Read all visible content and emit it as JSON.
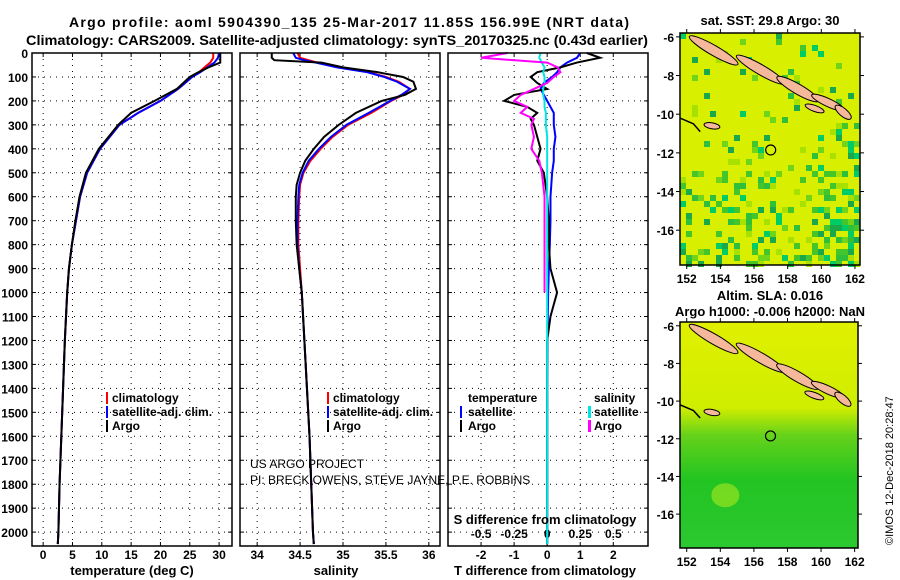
{
  "header": {
    "title_line1": "Argo profile: aoml 5904390_135 25-Mar-2017 11.85S 156.99E (NRT data)",
    "title_line2": "Climatology: CARS2009. Satellite-adjusted climatology: synTS_20170325.nc (0.43d earlier)"
  },
  "credits": {
    "line1": "US ARGO PROJECT",
    "line2": "PI: BRECK OWENS, STEVE JAYNE, P.E. ROBBINS",
    "imos": "©IMOS 12-Dec-2018 20:28:47"
  },
  "colors": {
    "climatology": "#ff0000",
    "satellite": "#0000ff",
    "argo": "#000000",
    "sal_satellite": "#00e5e5",
    "sal_argo": "#ff00ff",
    "map_yellow": "#d8f000",
    "map_green": "#22cc22",
    "land": "#f5b89a"
  },
  "chart_data": [
    {
      "type": "line",
      "name": "temperature",
      "xlabel": "temperature (deg C)",
      "xticks": [
        0,
        5,
        10,
        15,
        20,
        25,
        30
      ],
      "xlim": [
        -1.9,
        32.2
      ],
      "ylim": [
        0,
        2058
      ],
      "yticks": [
        0,
        100,
        200,
        300,
        400,
        500,
        600,
        700,
        800,
        900,
        1000,
        1100,
        1200,
        1300,
        1400,
        1500,
        1600,
        1700,
        1800,
        1900,
        2000
      ],
      "legend": [
        "climatology",
        "satellite-adj. clim.",
        "Argo"
      ],
      "depth": [
        0,
        20,
        40,
        60,
        80,
        100,
        150,
        200,
        250,
        300,
        400,
        500,
        600,
        700,
        800,
        900,
        1000,
        1100,
        1200,
        1400,
        1600,
        1800,
        2000,
        2050
      ],
      "series": [
        {
          "name": "climatology",
          "values": [
            29.0,
            29.0,
            28.5,
            27.5,
            26.6,
            25.4,
            23.0,
            20.0,
            16.2,
            13.0,
            9.7,
            7.5,
            6.3,
            5.6,
            4.9,
            4.4,
            4.1,
            3.9,
            3.7,
            3.4,
            3.1,
            2.8,
            2.6,
            2.5
          ]
        },
        {
          "name": "satellite-adj. clim.",
          "values": [
            30.0,
            29.8,
            29.2,
            28.0,
            26.8,
            25.4,
            23.0,
            20.0,
            16.2,
            13.0,
            9.7,
            7.5,
            6.3,
            5.6,
            4.9,
            4.4,
            4.1,
            3.9,
            3.7,
            3.4,
            3.1,
            2.8,
            2.6,
            2.5
          ]
        },
        {
          "name": "Argo",
          "values": [
            30.2,
            30.2,
            30.2,
            28.2,
            26.5,
            25.0,
            22.8,
            19.0,
            15.0,
            12.8,
            9.5,
            7.3,
            6.2,
            5.5,
            4.9,
            4.4,
            4.1,
            3.9,
            3.7,
            3.4,
            3.1,
            2.8,
            2.6,
            2.5
          ]
        }
      ]
    },
    {
      "type": "line",
      "name": "salinity",
      "xlabel": "salinity",
      "xticks": [
        34,
        34.5,
        35,
        35.5,
        36
      ],
      "xlim": [
        33.8,
        36.13
      ],
      "ylim": [
        0,
        2058
      ],
      "legend": [
        "climatology",
        "satellite-adj. clim.",
        "Argo"
      ],
      "depth": [
        0,
        20,
        30,
        40,
        60,
        80,
        100,
        120,
        150,
        175,
        200,
        250,
        300,
        350,
        400,
        450,
        500,
        550,
        600,
        700,
        800,
        900,
        1000,
        1200,
        1400,
        1600,
        1800,
        2000,
        2050
      ],
      "series": [
        {
          "name": "climatology",
          "values": [
            34.47,
            34.5,
            34.6,
            34.7,
            34.95,
            35.3,
            35.5,
            35.65,
            35.78,
            35.7,
            35.56,
            35.33,
            35.06,
            34.88,
            34.74,
            34.62,
            34.54,
            34.5,
            34.49,
            34.48,
            34.48,
            34.5,
            34.52,
            34.55,
            34.58,
            34.61,
            34.63,
            34.65,
            34.66
          ]
        },
        {
          "name": "satellite-adj. clim.",
          "values": [
            34.42,
            34.45,
            34.55,
            34.68,
            34.93,
            35.28,
            35.48,
            35.63,
            35.78,
            35.68,
            35.55,
            35.3,
            35.04,
            34.86,
            34.72,
            34.6,
            34.53,
            34.49,
            34.48,
            34.47,
            34.47,
            34.49,
            34.52,
            34.55,
            34.58,
            34.61,
            34.63,
            34.65,
            34.66
          ]
        },
        {
          "name": "Argo",
          "values": [
            34.17,
            34.17,
            34.2,
            34.75,
            35.0,
            35.4,
            35.7,
            35.82,
            35.85,
            35.72,
            35.45,
            35.15,
            34.95,
            34.78,
            34.66,
            34.56,
            34.5,
            34.46,
            34.45,
            34.45,
            34.46,
            34.49,
            34.52,
            34.55,
            34.58,
            34.61,
            34.63,
            34.65,
            34.66
          ]
        }
      ]
    },
    {
      "type": "line",
      "name": "differences",
      "xlabel": "T difference from climatology",
      "xlabel2": "S difference from climatology",
      "xticks": [
        -2,
        -1,
        0,
        1,
        2
      ],
      "xticks2": [
        -0.5,
        -0.25,
        0,
        0.25,
        0.5
      ],
      "xtick2_labels": [
        "-0.5",
        "-0.25",
        "0",
        "0.25",
        "0.5"
      ],
      "xlim": [
        -3.0,
        3.05
      ],
      "ylim": [
        0,
        2058
      ],
      "legend_titles": [
        "temperature",
        "salinity"
      ],
      "legend": [
        "satellite",
        "Argo",
        "satellite",
        "Argo"
      ],
      "depth": [
        0,
        20,
        40,
        60,
        80,
        100,
        125,
        150,
        175,
        200,
        225,
        250,
        275,
        300,
        350,
        400,
        450,
        500,
        600,
        700,
        800,
        900,
        1000,
        1100,
        1200,
        1400,
        1600,
        1800,
        2000,
        2050
      ],
      "series": [
        {
          "name": "temperature satellite",
          "values": [
            1.0,
            0.9,
            0.6,
            0.4,
            0.3,
            0.15,
            -0.1,
            -0.2,
            -0.1,
            0.0,
            0.1,
            0.2,
            0.2,
            0.2,
            0.25,
            0.2,
            0.2,
            0.15,
            0.1,
            0.1,
            0.08,
            0.05,
            0.03,
            0.02,
            0.01,
            0.0,
            0.0,
            0.0,
            0.0,
            0.0
          ]
        },
        {
          "name": "temperature Argo",
          "values": [
            1.2,
            1.6,
            0.9,
            0.4,
            -0.3,
            -0.5,
            -0.3,
            0.0,
            -1.0,
            -1.3,
            -0.6,
            -0.3,
            -0.5,
            -0.4,
            -0.3,
            -0.2,
            -0.3,
            -0.1,
            0.0,
            0.05,
            0.05,
            0.1,
            0.3,
            0.1,
            0.0,
            0.0,
            0.0,
            0.0,
            0.0,
            0.0
          ]
        },
        {
          "name": "salinity satellite",
          "values": [
            -0.05,
            -0.06,
            -0.04,
            -0.02,
            -0.03,
            -0.02,
            -0.02,
            -0.03,
            -0.03,
            -0.02,
            -0.02,
            -0.01,
            -0.01,
            -0.01,
            0.0,
            0.0,
            0.0,
            0.0,
            0.0,
            0.0,
            0.0,
            0.0,
            0.0,
            0.0,
            0.0,
            0.0,
            0.0,
            0.0,
            0.0,
            0.0
          ]
        },
        {
          "name": "salinity Argo",
          "values": [
            -0.3,
            -0.5,
            0.0,
            0.08,
            0.1,
            0.05,
            0.0,
            -0.1,
            -0.2,
            -0.25,
            -0.15,
            -0.2,
            -0.1,
            -0.12,
            -0.1,
            -0.12,
            -0.06,
            -0.04,
            -0.02,
            -0.02,
            -0.02,
            -0.02,
            -0.02,
            null,
            null,
            null,
            null,
            null,
            null,
            null
          ]
        }
      ]
    },
    {
      "type": "heatmap",
      "name": "sst-map",
      "title": "sat. SST: 29.8 Argo: 30",
      "xlim": [
        151.6,
        162.3
      ],
      "ylim": [
        -17.8,
        -5.8
      ],
      "xticks": [
        152,
        154,
        156,
        158,
        160,
        162
      ],
      "yticks": [
        -6,
        -8,
        -10,
        -12,
        -14,
        -16
      ],
      "marker": {
        "lon": 156.99,
        "lat": -11.85
      }
    },
    {
      "type": "heatmap",
      "name": "sla-map",
      "title": "Altim. SLA: 0.016",
      "subtitle": "Argo h1000: -0.006 h2000: NaN",
      "xlim": [
        151.6,
        162.2
      ],
      "ylim": [
        -17.8,
        -5.8
      ],
      "xticks": [
        152,
        154,
        156,
        158,
        160,
        162
      ],
      "yticks": [
        -6,
        -8,
        -10,
        -12,
        -14,
        -16
      ],
      "marker": {
        "lon": 156.99,
        "lat": -11.85
      }
    }
  ]
}
